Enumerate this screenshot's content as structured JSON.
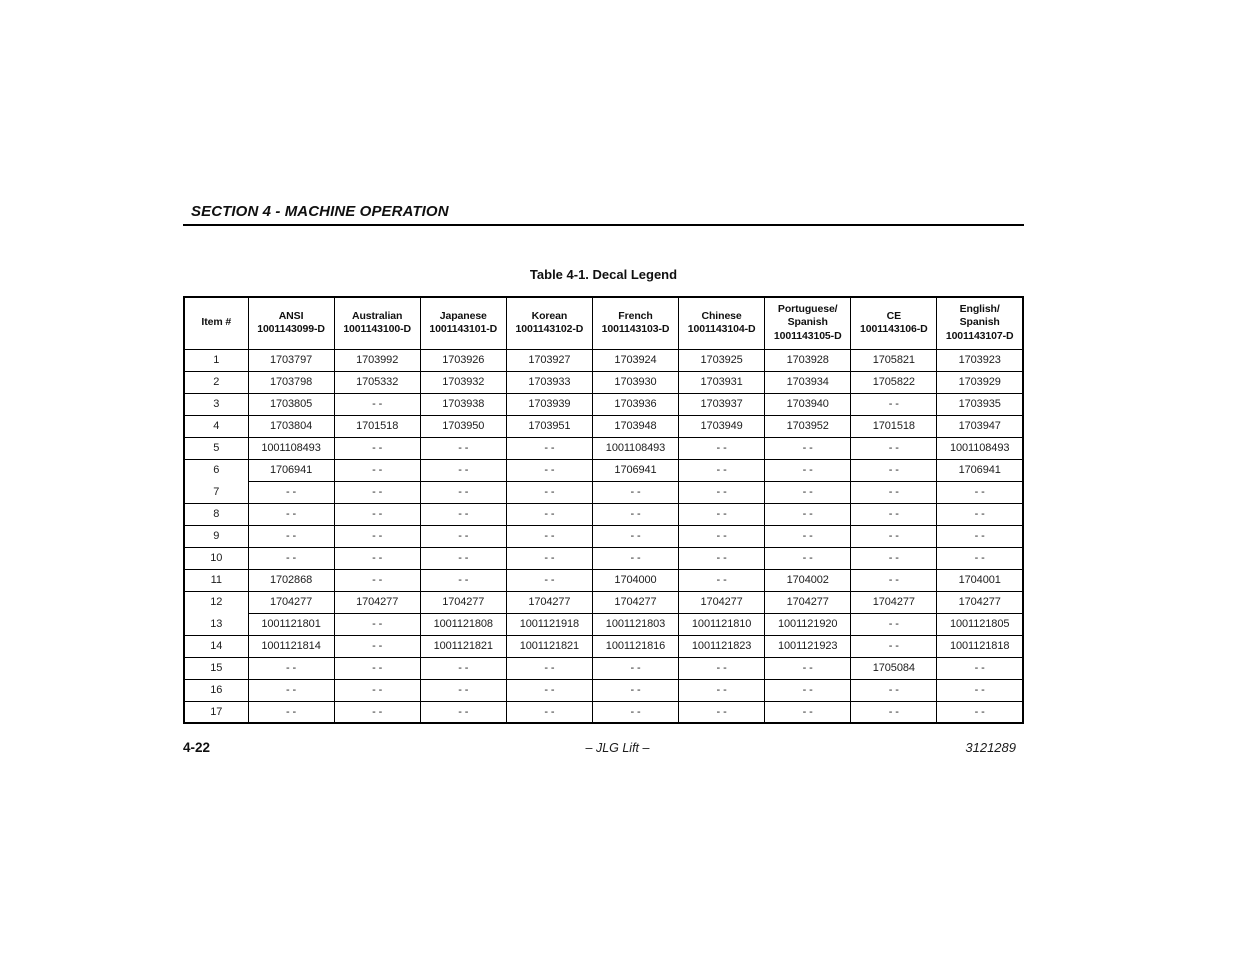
{
  "page": {
    "section_header": "SECTION 4 - MACHINE OPERATION",
    "table_title": "Table 4-1. Decal Legend",
    "footer": {
      "page_number": "4-22",
      "center_text": "– JLG Lift –",
      "doc_number": "3121289"
    }
  },
  "table": {
    "columns": [
      {
        "lines": [
          "Item #"
        ]
      },
      {
        "lines": [
          "ANSI",
          "1001143099-D"
        ]
      },
      {
        "lines": [
          "Australian",
          "1001143100-D"
        ]
      },
      {
        "lines": [
          "Japanese",
          "1001143101-D"
        ]
      },
      {
        "lines": [
          "Korean",
          "1001143102-D"
        ]
      },
      {
        "lines": [
          "French",
          "1001143103-D"
        ]
      },
      {
        "lines": [
          "Chinese",
          "1001143104-D"
        ]
      },
      {
        "lines": [
          "Portuguese/",
          "Spanish",
          "1001143105-D"
        ]
      },
      {
        "lines": [
          "CE",
          "1001143106-D"
        ]
      },
      {
        "lines": [
          "English/",
          "Spanish",
          "1001143107-D"
        ]
      }
    ],
    "rows": [
      {
        "item": "1",
        "values": [
          "1703797",
          "1703992",
          "1703926",
          "1703927",
          "1703924",
          "1703925",
          "1703928",
          "1705821",
          "1703923"
        ]
      },
      {
        "item": "2",
        "values": [
          "1703798",
          "1705332",
          "1703932",
          "1703933",
          "1703930",
          "1703931",
          "1703934",
          "1705822",
          "1703929"
        ]
      },
      {
        "item": "3",
        "values": [
          "1703805",
          "- -",
          "1703938",
          "1703939",
          "1703936",
          "1703937",
          "1703940",
          "- -",
          "1703935"
        ]
      },
      {
        "item": "4",
        "values": [
          "1703804",
          "1701518",
          "1703950",
          "1703951",
          "1703948",
          "1703949",
          "1703952",
          "1701518",
          "1703947"
        ]
      },
      {
        "item": "5",
        "values": [
          "1001108493",
          "- -",
          "- -",
          "- -",
          "1001108493",
          "- -",
          "- -",
          "- -",
          "1001108493"
        ]
      },
      {
        "item": "6",
        "values": [
          "1706941",
          "- -",
          "- -",
          "- -",
          "1706941",
          "- -",
          "- -",
          "- -",
          "1706941"
        ]
      },
      {
        "item": "7",
        "values": [
          "- -",
          "- -",
          "- -",
          "- -",
          "- -",
          "- -",
          "- -",
          "- -",
          "- -"
        ]
      },
      {
        "item": "8",
        "values": [
          "- -",
          "- -",
          "- -",
          "- -",
          "- -",
          "- -",
          "- -",
          "- -",
          "- -"
        ]
      },
      {
        "item": "9",
        "values": [
          "- -",
          "- -",
          "- -",
          "- -",
          "- -",
          "- -",
          "- -",
          "- -",
          "- -"
        ]
      },
      {
        "item": "10",
        "values": [
          "- -",
          "- -",
          "- -",
          "- -",
          "- -",
          "- -",
          "- -",
          "- -",
          "- -"
        ]
      },
      {
        "item": "11",
        "values": [
          "1702868",
          "- -",
          "- -",
          "- -",
          "1704000",
          "- -",
          "1704002",
          "- -",
          "1704001"
        ]
      },
      {
        "item": "12",
        "values": [
          "1704277",
          "1704277",
          "1704277",
          "1704277",
          "1704277",
          "1704277",
          "1704277",
          "1704277",
          "1704277"
        ]
      },
      {
        "item": "13",
        "values": [
          "1001121801",
          "- -",
          "1001121808",
          "1001121918",
          "1001121803",
          "1001121810",
          "1001121920",
          "- -",
          "1001121805"
        ]
      },
      {
        "item": "14",
        "values": [
          "1001121814",
          "- -",
          "1001121821",
          "1001121821",
          "1001121816",
          "1001121823",
          "1001121923",
          "- -",
          "1001121818"
        ]
      },
      {
        "item": "15",
        "values": [
          "- -",
          "- -",
          "- -",
          "- -",
          "- -",
          "- -",
          "- -",
          "1705084",
          "- -"
        ]
      },
      {
        "item": "16",
        "values": [
          "- -",
          "- -",
          "- -",
          "- -",
          "- -",
          "- -",
          "- -",
          "- -",
          "- -"
        ]
      },
      {
        "item": "17",
        "values": [
          "- -",
          "- -",
          "- -",
          "- -",
          "- -",
          "- -",
          "- -",
          "- -",
          "- -"
        ]
      }
    ]
  }
}
